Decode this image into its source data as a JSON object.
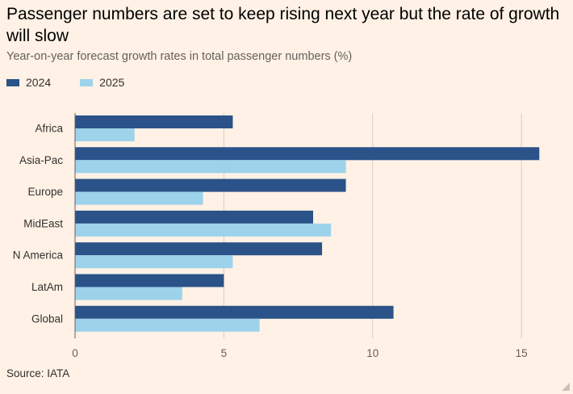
{
  "header": {
    "title": "Passenger numbers are set to keep rising next year but the rate of growth will slow",
    "subtitle": "Year-on-year forecast growth rates in total passenger numbers (%)"
  },
  "footer": {
    "source": "Source: IATA"
  },
  "colors": {
    "series_2024": "#2b5289",
    "series_2025": "#9dd3ea",
    "grid": "#d6cdc4",
    "background": "#fff1e5"
  },
  "chart_data": {
    "type": "bar",
    "orientation": "horizontal",
    "title": "Passenger numbers are set to keep rising next year but the rate of growth will slow",
    "subtitle": "Year-on-year forecast growth rates in total passenger numbers (%)",
    "xlabel": "",
    "ylabel": "",
    "categories": [
      "Africa",
      "Asia-Pac",
      "Europe",
      "MidEast",
      "N America",
      "LatAm",
      "Global"
    ],
    "series": [
      {
        "name": "2024",
        "values": [
          5.3,
          15.6,
          9.1,
          8.0,
          8.3,
          5.0,
          10.7
        ]
      },
      {
        "name": "2025",
        "values": [
          2.0,
          9.1,
          4.3,
          8.6,
          5.3,
          3.6,
          6.2
        ]
      }
    ],
    "xlim": [
      0,
      16
    ],
    "xticks": [
      0,
      5,
      10,
      15
    ],
    "grid": true,
    "legend": "top-left"
  }
}
